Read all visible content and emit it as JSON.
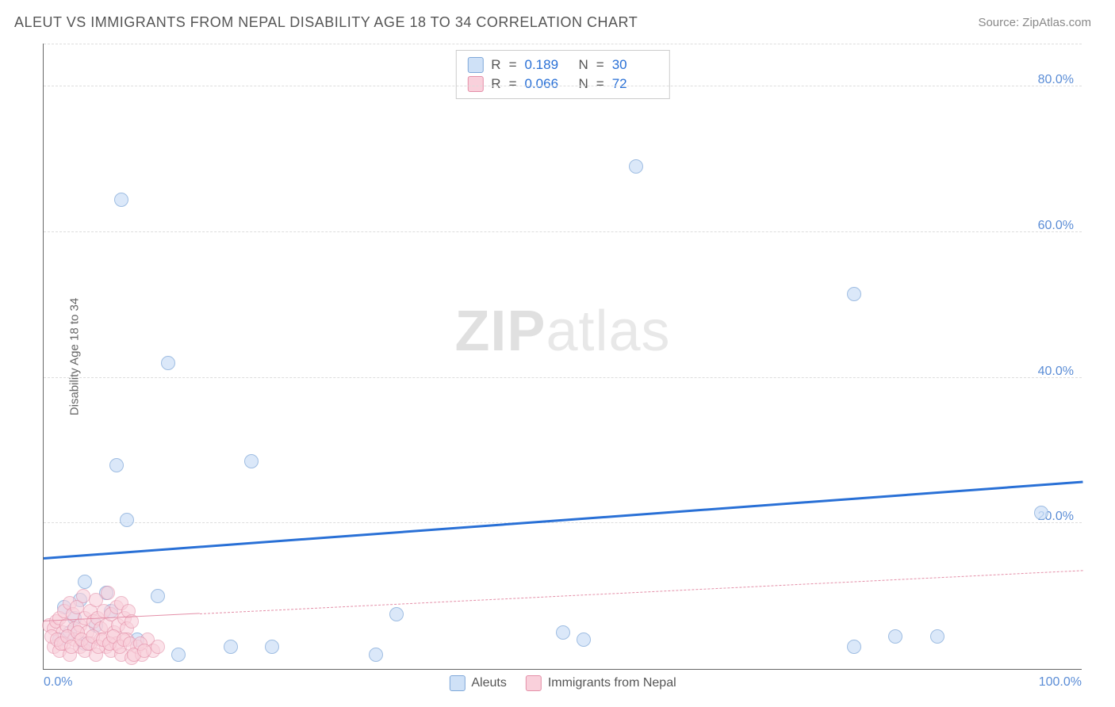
{
  "title": "ALEUT VS IMMIGRANTS FROM NEPAL DISABILITY AGE 18 TO 34 CORRELATION CHART",
  "source": "Source: ZipAtlas.com",
  "watermark_bold": "ZIP",
  "watermark_light": "atlas",
  "ylabel": "Disability Age 18 to 34",
  "chart": {
    "type": "scatter",
    "xlim": [
      0,
      100
    ],
    "ylim": [
      0,
      86
    ],
    "yticks": [
      20,
      40,
      60,
      80
    ],
    "ytick_labels": [
      "20.0%",
      "40.0%",
      "60.0%",
      "80.0%"
    ],
    "xtick_left": "0.0%",
    "xtick_right": "100.0%",
    "grid_color": "#dddddd",
    "axis_color": "#666666",
    "tick_label_color": "#5b8dd6",
    "background_color": "#ffffff",
    "series": [
      {
        "name": "Aleuts",
        "r": "0.189",
        "n": "30",
        "marker_fill": "#cfe1f7",
        "marker_stroke": "#7fa8d9",
        "marker_opacity": 0.75,
        "marker_radius": 9,
        "trend": {
          "x0": 0,
          "y0": 15.0,
          "x1": 100,
          "y1": 25.5,
          "color": "#2970d6",
          "width": 3,
          "dash": "solid"
        },
        "points": [
          [
            7.5,
            64.5
          ],
          [
            57.0,
            69.0
          ],
          [
            78.0,
            51.5
          ],
          [
            12.0,
            42.0
          ],
          [
            7.0,
            28.0
          ],
          [
            20.0,
            28.5
          ],
          [
            96.0,
            21.5
          ],
          [
            8.0,
            20.5
          ],
          [
            4.0,
            12.0
          ],
          [
            6.0,
            10.5
          ],
          [
            11.0,
            10.0
          ],
          [
            2.0,
            8.5
          ],
          [
            3.0,
            7.0
          ],
          [
            5.0,
            6.0
          ],
          [
            34.0,
            7.5
          ],
          [
            50.0,
            5.0
          ],
          [
            52.0,
            4.0
          ],
          [
            82.0,
            4.5
          ],
          [
            86.0,
            4.5
          ],
          [
            78.0,
            3.0
          ],
          [
            13.0,
            2.0
          ],
          [
            18.0,
            3.0
          ],
          [
            22.0,
            3.0
          ],
          [
            32.0,
            2.0
          ],
          [
            4.0,
            3.5
          ],
          [
            2.5,
            5.0
          ],
          [
            1.5,
            4.0
          ],
          [
            9.0,
            4.0
          ],
          [
            3.5,
            9.5
          ],
          [
            6.5,
            8.0
          ]
        ]
      },
      {
        "name": "Immigrants from Nepal",
        "r": "0.066",
        "n": "72",
        "marker_fill": "#f9d0db",
        "marker_stroke": "#e48fa8",
        "marker_opacity": 0.6,
        "marker_radius": 9,
        "trend": {
          "x0": 0,
          "y0": 6.5,
          "x1": 100,
          "y1": 13.5,
          "color": "#e48fa8",
          "width": 1.5,
          "dash": "dashed",
          "solid_until_x": 15
        },
        "points": [
          [
            0.5,
            6.0
          ],
          [
            1.0,
            5.5
          ],
          [
            1.2,
            6.5
          ],
          [
            1.5,
            7.0
          ],
          [
            1.8,
            5.0
          ],
          [
            2.0,
            8.0
          ],
          [
            2.2,
            6.0
          ],
          [
            2.5,
            9.0
          ],
          [
            2.8,
            7.5
          ],
          [
            3.0,
            5.5
          ],
          [
            3.2,
            8.5
          ],
          [
            3.5,
            6.0
          ],
          [
            3.8,
            10.0
          ],
          [
            4.0,
            7.0
          ],
          [
            4.2,
            5.0
          ],
          [
            4.5,
            8.0
          ],
          [
            4.8,
            6.5
          ],
          [
            5.0,
            9.5
          ],
          [
            5.2,
            7.0
          ],
          [
            5.5,
            5.5
          ],
          [
            5.8,
            8.0
          ],
          [
            6.0,
            6.0
          ],
          [
            6.2,
            10.5
          ],
          [
            6.5,
            7.5
          ],
          [
            6.8,
            5.0
          ],
          [
            7.0,
            8.5
          ],
          [
            7.2,
            6.0
          ],
          [
            7.5,
            9.0
          ],
          [
            7.8,
            7.0
          ],
          [
            8.0,
            5.5
          ],
          [
            8.2,
            8.0
          ],
          [
            8.5,
            6.5
          ],
          [
            1.0,
            3.0
          ],
          [
            1.5,
            2.5
          ],
          [
            2.0,
            3.5
          ],
          [
            2.5,
            2.0
          ],
          [
            3.0,
            4.0
          ],
          [
            3.5,
            3.0
          ],
          [
            4.0,
            2.5
          ],
          [
            4.5,
            3.5
          ],
          [
            5.0,
            2.0
          ],
          [
            5.5,
            4.0
          ],
          [
            6.0,
            3.0
          ],
          [
            6.5,
            2.5
          ],
          [
            7.0,
            3.5
          ],
          [
            7.5,
            2.0
          ],
          [
            8.0,
            4.0
          ],
          [
            8.5,
            1.5
          ],
          [
            9.0,
            3.0
          ],
          [
            9.5,
            2.0
          ],
          [
            10.0,
            4.0
          ],
          [
            10.5,
            2.5
          ],
          [
            11.0,
            3.0
          ],
          [
            0.8,
            4.5
          ],
          [
            1.3,
            4.0
          ],
          [
            1.7,
            3.5
          ],
          [
            2.3,
            4.5
          ],
          [
            2.7,
            3.0
          ],
          [
            3.3,
            5.0
          ],
          [
            3.7,
            4.0
          ],
          [
            4.3,
            3.5
          ],
          [
            4.7,
            4.5
          ],
          [
            5.3,
            3.0
          ],
          [
            5.7,
            4.0
          ],
          [
            6.3,
            3.5
          ],
          [
            6.7,
            4.5
          ],
          [
            7.3,
            3.0
          ],
          [
            7.7,
            4.0
          ],
          [
            8.3,
            3.5
          ],
          [
            8.7,
            2.0
          ],
          [
            9.3,
            3.5
          ],
          [
            9.7,
            2.5
          ]
        ]
      }
    ],
    "stats_labels": {
      "r": "R",
      "n": "N",
      "eq": "="
    },
    "legend_labels": [
      "Aleuts",
      "Immigrants from Nepal"
    ]
  }
}
